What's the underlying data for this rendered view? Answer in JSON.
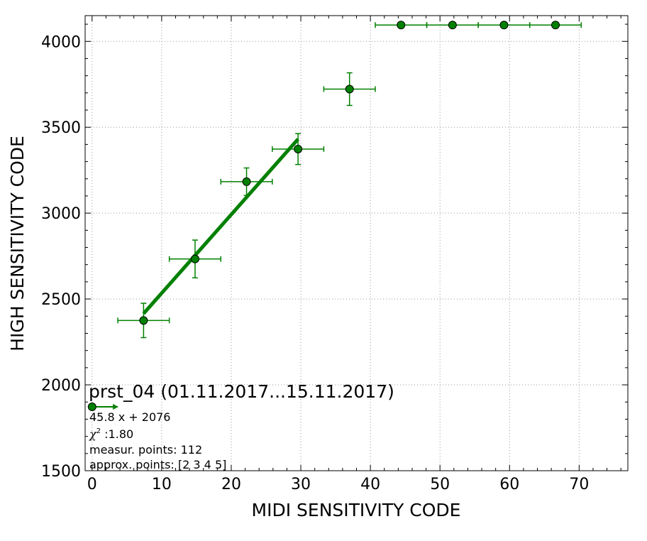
{
  "chart_data": {
    "type": "scatter",
    "title": "",
    "xlabel": "MIDI SENSITIVITY CODE",
    "ylabel": "HIGH SENSITIVITY CODE",
    "xlim": [
      -1,
      77
    ],
    "ylim": [
      1500,
      4150
    ],
    "x_ticks": [
      0,
      10,
      20,
      30,
      40,
      50,
      60,
      70
    ],
    "y_ticks": [
      1500,
      2000,
      2500,
      3000,
      3500,
      4000
    ],
    "x_minor_step": 2,
    "y_minor_step": 100,
    "grid": true,
    "grid_style": "dotted",
    "colors": {
      "series": "#008000",
      "marker_edge": "#000000",
      "grid": "#999999"
    },
    "series": [
      {
        "kind": "errorbar",
        "points": [
          {
            "x": 7.4,
            "y": 2375,
            "xerr": 3.7,
            "yerr": 100
          },
          {
            "x": 14.8,
            "y": 2733,
            "xerr": 3.7,
            "yerr": 110
          },
          {
            "x": 22.2,
            "y": 3183,
            "xerr": 3.7,
            "yerr": 80
          },
          {
            "x": 29.6,
            "y": 3373,
            "xerr": 3.7,
            "yerr": 90
          },
          {
            "x": 37.0,
            "y": 3722,
            "xerr": 3.7,
            "yerr": 95
          },
          {
            "x": 44.4,
            "y": 4095,
            "xerr": 3.7,
            "yerr": 0
          },
          {
            "x": 51.8,
            "y": 4095,
            "xerr": 3.7,
            "yerr": 0
          },
          {
            "x": 59.2,
            "y": 4095,
            "xerr": 3.7,
            "yerr": 0
          },
          {
            "x": 66.6,
            "y": 4095,
            "xerr": 3.7,
            "yerr": 0
          }
        ]
      },
      {
        "kind": "fit_line",
        "x": [
          7.4,
          29.6
        ],
        "y": [
          2415,
          3431
        ]
      },
      {
        "kind": "legend_marker",
        "x": 0,
        "y": 1872,
        "arrow_to_x": 3.8
      }
    ],
    "annotations": {
      "title": "prst_04 (01.11.2017...15.11.2017)",
      "equation": "45.8 x + 2076",
      "chi_symbol": "χ",
      "chi_sup": "2",
      "chi_value": " :1.80",
      "measur_points": "measur. points: 112",
      "approx_points": "approx. points: [2 3 4 5]"
    }
  }
}
